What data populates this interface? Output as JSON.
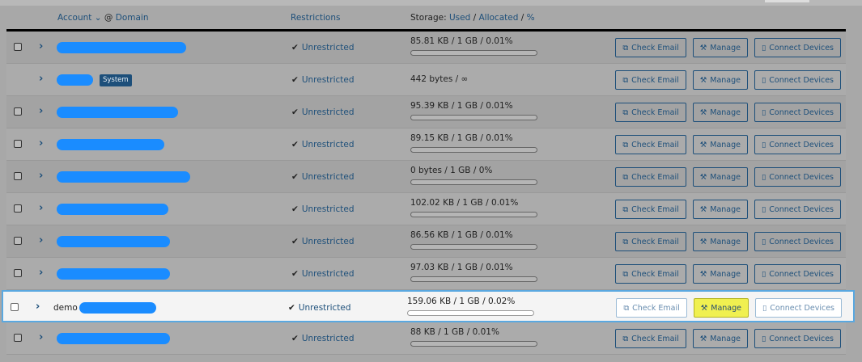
{
  "header": {
    "account": "Account",
    "sort_icon": "chevron-down",
    "at": "@",
    "domain": "Domain",
    "restrictions": "Restrictions",
    "storage_prefix": "Storage:",
    "used": "Used",
    "slash": "/",
    "allocated": "Allocated",
    "percent": "%"
  },
  "buttons": {
    "check_email": "Check Email",
    "manage": "Manage",
    "connect_devices": "Connect Devices"
  },
  "colors": {
    "accent": "#1d4f7a",
    "highlight": "#f0f050",
    "redaction": "#1a8cff"
  },
  "rows": [
    {
      "name": "",
      "checkbox": true,
      "restriction": "Unrestricted",
      "storage": "85.81 KB / 1 GB / 0.01%",
      "usage_percent": 0.01
    },
    {
      "name": "",
      "checkbox": false,
      "badge": "System",
      "restriction": "Unrestricted",
      "storage": "442 bytes / ∞"
    },
    {
      "name": "",
      "checkbox": true,
      "restriction": "Unrestricted",
      "storage": "95.39 KB / 1 GB / 0.01%",
      "usage_percent": 0.01
    },
    {
      "name": "",
      "checkbox": true,
      "restriction": "Unrestricted",
      "storage": "89.15 KB / 1 GB / 0.01%",
      "usage_percent": 0.01
    },
    {
      "name": "",
      "checkbox": true,
      "restriction": "Unrestricted",
      "storage": "0 bytes / 1 GB / 0%",
      "usage_percent": 0
    },
    {
      "name": "",
      "checkbox": true,
      "restriction": "Unrestricted",
      "storage": "102.02 KB / 1 GB / 0.01%",
      "usage_percent": 0.01
    },
    {
      "name": "",
      "checkbox": true,
      "restriction": "Unrestricted",
      "storage": "86.56 KB / 1 GB / 0.01%",
      "usage_percent": 0.01
    },
    {
      "name": "",
      "checkbox": true,
      "restriction": "Unrestricted",
      "storage": "97.03 KB / 1 GB / 0.01%",
      "usage_percent": 0.01
    },
    {
      "name": "demo",
      "checkbox": true,
      "highlighted": true,
      "restriction": "Unrestricted",
      "storage": "159.06 KB / 1 GB / 0.02%",
      "usage_percent": 0.02
    },
    {
      "name": "",
      "checkbox": true,
      "restriction": "Unrestricted",
      "storage": "88 KB / 1 GB / 0.01%",
      "usage_percent": 0.01
    }
  ]
}
